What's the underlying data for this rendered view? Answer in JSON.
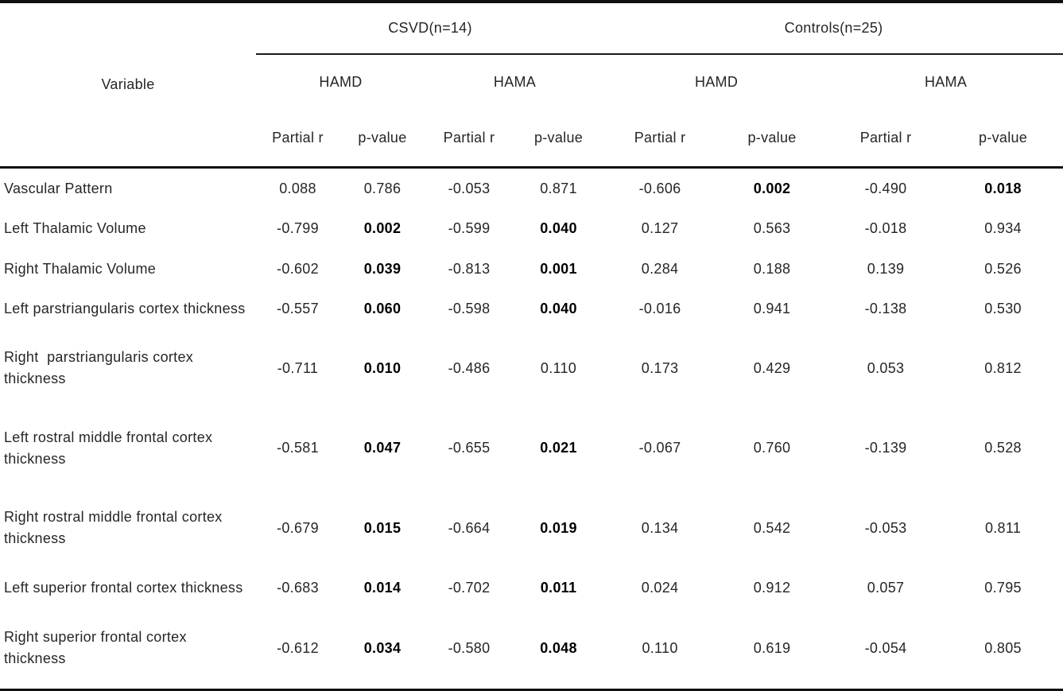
{
  "table": {
    "variable_header": "Variable",
    "groups": [
      {
        "label": "CSVD(n=14)"
      },
      {
        "label": "Controls(n=25)"
      }
    ],
    "scales": [
      "HAMD",
      "HAMA",
      "HAMD",
      "HAMA"
    ],
    "measures": [
      "Partial r",
      "p-value",
      "Partial r",
      "p-value",
      "Partial r",
      "p-value",
      "Partial r",
      "p-value"
    ],
    "rows": [
      {
        "variable": "Vascular Pattern",
        "cells": [
          {
            "v": "0.088",
            "bold": false
          },
          {
            "v": "0.786",
            "bold": false
          },
          {
            "v": "-0.053",
            "bold": false
          },
          {
            "v": "0.871",
            "bold": false
          },
          {
            "v": "-0.606",
            "bold": false
          },
          {
            "v": "0.002",
            "bold": true
          },
          {
            "v": "-0.490",
            "bold": false
          },
          {
            "v": "0.018",
            "bold": true
          }
        ]
      },
      {
        "variable": "Left Thalamic Volume",
        "cells": [
          {
            "v": "-0.799",
            "bold": false
          },
          {
            "v": "0.002",
            "bold": true
          },
          {
            "v": "-0.599",
            "bold": false
          },
          {
            "v": "0.040",
            "bold": true
          },
          {
            "v": "0.127",
            "bold": false
          },
          {
            "v": "0.563",
            "bold": false
          },
          {
            "v": "-0.018",
            "bold": false
          },
          {
            "v": "0.934",
            "bold": false
          }
        ]
      },
      {
        "variable": "Right Thalamic Volume",
        "cells": [
          {
            "v": "-0.602",
            "bold": false
          },
          {
            "v": "0.039",
            "bold": true
          },
          {
            "v": "-0.813",
            "bold": false
          },
          {
            "v": "0.001",
            "bold": true
          },
          {
            "v": "0.284",
            "bold": false
          },
          {
            "v": "0.188",
            "bold": false
          },
          {
            "v": "0.139",
            "bold": false
          },
          {
            "v": "0.526",
            "bold": false
          }
        ]
      },
      {
        "variable": "Left parstriangularis cortex thickness",
        "cells": [
          {
            "v": "-0.557",
            "bold": false
          },
          {
            "v": "0.060",
            "bold": true
          },
          {
            "v": "-0.598",
            "bold": false
          },
          {
            "v": "0.040",
            "bold": true
          },
          {
            "v": "-0.016",
            "bold": false
          },
          {
            "v": "0.941",
            "bold": false
          },
          {
            "v": "-0.138",
            "bold": false
          },
          {
            "v": "0.530",
            "bold": false
          }
        ]
      },
      {
        "variable": "Right  parstriangularis cortex thickness",
        "cells": [
          {
            "v": "-0.711",
            "bold": false
          },
          {
            "v": "0.010",
            "bold": true
          },
          {
            "v": "-0.486",
            "bold": false
          },
          {
            "v": "0.110",
            "bold": false
          },
          {
            "v": "0.173",
            "bold": false
          },
          {
            "v": "0.429",
            "bold": false
          },
          {
            "v": "0.053",
            "bold": false
          },
          {
            "v": "0.812",
            "bold": false
          }
        ]
      },
      {
        "variable": "Left rostral middle frontal cortex thickness",
        "cells": [
          {
            "v": "-0.581",
            "bold": false
          },
          {
            "v": "0.047",
            "bold": true
          },
          {
            "v": "-0.655",
            "bold": false
          },
          {
            "v": "0.021",
            "bold": true
          },
          {
            "v": "-0.067",
            "bold": false
          },
          {
            "v": "0.760",
            "bold": false
          },
          {
            "v": "-0.139",
            "bold": false
          },
          {
            "v": "0.528",
            "bold": false
          }
        ]
      },
      {
        "variable": "Right rostral middle frontal cortex thickness",
        "cells": [
          {
            "v": "-0.679",
            "bold": false
          },
          {
            "v": "0.015",
            "bold": true
          },
          {
            "v": "-0.664",
            "bold": false
          },
          {
            "v": "0.019",
            "bold": true
          },
          {
            "v": "0.134",
            "bold": false
          },
          {
            "v": "0.542",
            "bold": false
          },
          {
            "v": "-0.053",
            "bold": false
          },
          {
            "v": "0.811",
            "bold": false
          }
        ]
      },
      {
        "variable": "Left superior frontal cortex thickness",
        "cells": [
          {
            "v": "-0.683",
            "bold": false
          },
          {
            "v": "0.014",
            "bold": true
          },
          {
            "v": "-0.702",
            "bold": false
          },
          {
            "v": "0.011",
            "bold": true
          },
          {
            "v": "0.024",
            "bold": false
          },
          {
            "v": "0.912",
            "bold": false
          },
          {
            "v": "0.057",
            "bold": false
          },
          {
            "v": "0.795",
            "bold": false
          }
        ]
      },
      {
        "variable": "Right superior frontal cortex thickness",
        "cells": [
          {
            "v": "-0.612",
            "bold": false
          },
          {
            "v": "0.034",
            "bold": true
          },
          {
            "v": "-0.580",
            "bold": false
          },
          {
            "v": "0.048",
            "bold": true
          },
          {
            "v": "0.110",
            "bold": false
          },
          {
            "v": "0.619",
            "bold": false
          },
          {
            "v": "-0.054",
            "bold": false
          },
          {
            "v": "0.805",
            "bold": false
          }
        ]
      }
    ]
  }
}
